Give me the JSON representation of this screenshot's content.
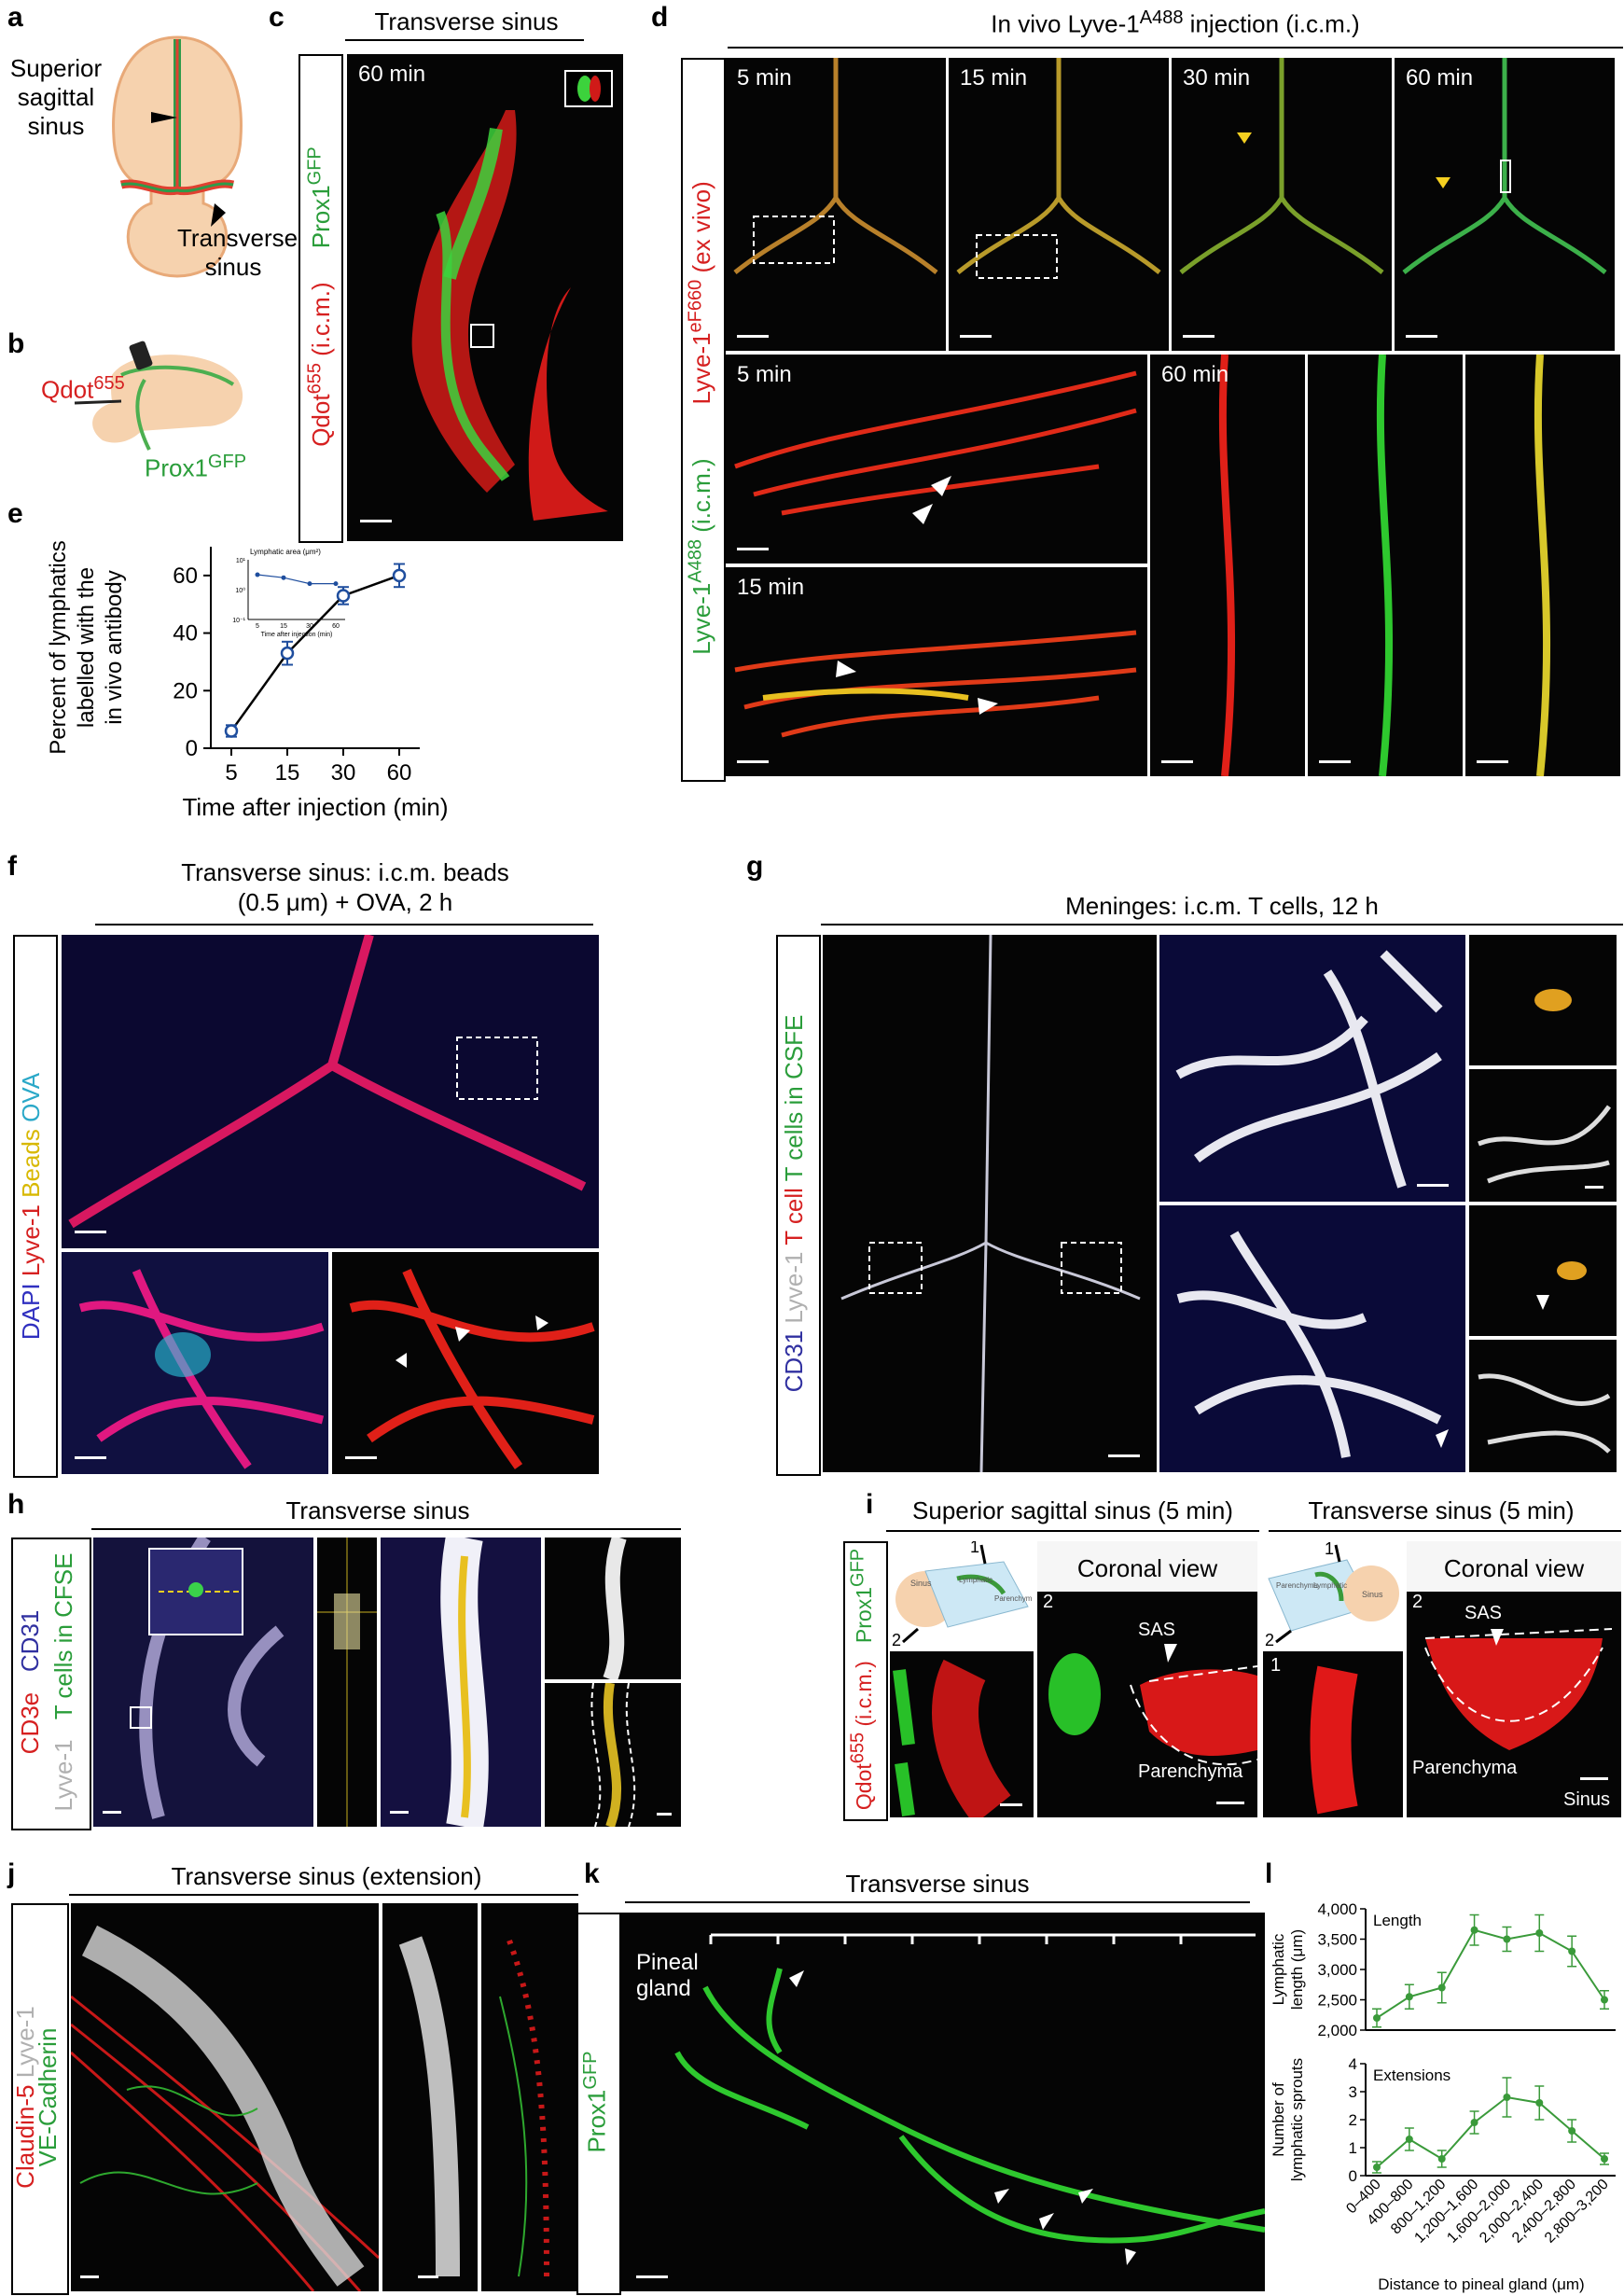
{
  "panels": {
    "a": {
      "letter": "a",
      "sss": [
        "Superior",
        "sagittal",
        "sinus"
      ],
      "ts": [
        "Transverse",
        "sinus"
      ]
    },
    "b": {
      "letter": "b",
      "qdot_main": "Qdot",
      "qdot_sup": "655",
      "prox_main": "Prox1",
      "prox_sup": "GFP"
    },
    "c": {
      "letter": "c",
      "title": "Transverse sinus",
      "time": "60 min",
      "side_prox": "Prox1",
      "side_prox_sup": "GFP",
      "side_qdot": "Qdot",
      "side_qdot_sup": "655",
      "side_qdot_tail": " (i.c.m.)"
    },
    "d": {
      "letter": "d",
      "title_pre": "In vivo Lyve-1",
      "title_sup": "A488",
      "title_post": " injection (i.c.m.)",
      "times": [
        "5 min",
        "15 min",
        "30 min",
        "60 min"
      ],
      "z5": "5 min",
      "z15": "15 min",
      "z60": "60 min",
      "side_red": "Lyve-1",
      "side_red_sup": "eF660",
      "side_red_tail": " (ex vivo)",
      "side_green": "Lyve-1",
      "side_green_sup": "A488",
      "side_green_tail": " (i.c.m.)"
    },
    "e": {
      "letter": "e",
      "ylabel": [
        "Percent of lymphatics",
        "labelled with the",
        "in vivo antibody"
      ],
      "xlabel": "Time after injection (min)",
      "inset_title": "Lymphatic area (μm²)",
      "inset_xlabel": "Time after injection (min)"
    },
    "f": {
      "letter": "f",
      "title1": "Transverse sinus: i.c.m. beads",
      "title2": "(0.5 μm) + OVA, 2 h",
      "side": [
        "DAPI",
        "Lyve-1",
        "Beads",
        "OVA"
      ]
    },
    "g": {
      "letter": "g",
      "title": "Meninges: i.c.m. T cells, 12 h",
      "side": [
        "CD31",
        "Lyve-1",
        "T cell",
        "T cells in CSFE"
      ]
    },
    "h": {
      "letter": "h",
      "title": "Transverse sinus",
      "side": [
        "CD3e",
        "CD31",
        "Lyve-1",
        "T cells in CFSE"
      ]
    },
    "i": {
      "letter": "i",
      "title_left": "Superior sagittal sinus (5 min)",
      "title_right": "Transverse sinus (5 min)",
      "coronal": "Coronal view",
      "sas": "SAS",
      "parenchyma": "Parenchyma",
      "sinus": "Sinus",
      "n1": "1",
      "n2": "2",
      "schem_left": [
        "Sinus",
        "Lymphatic",
        "Parenchyma"
      ],
      "schem_right": [
        "Parenchyma",
        "Lymphatic",
        "Sinus"
      ],
      "side_prox": "Prox1",
      "side_prox_sup": "GFP",
      "side_qdot": "Qdot",
      "side_qdot_sup": "655",
      "side_qdot_tail": " (i.c.m.)"
    },
    "j": {
      "letter": "j",
      "title": "Transverse sinus (extension)",
      "side_red": "Claudin-5",
      "side_white": "Lyve-1",
      "side_green": "VE-Cadherin"
    },
    "k": {
      "letter": "k",
      "title": "Transverse sinus",
      "pineal": [
        "Pineal",
        "gland"
      ],
      "side": "Prox1",
      "side_sup": "GFP"
    },
    "l": {
      "letter": "l",
      "top_label": "Length",
      "bottom_label": "Extensions",
      "ylabel_top": [
        "Lymphatic",
        "length (μm)"
      ],
      "ylabel_bottom": [
        "Number of",
        "lymphatic sprouts"
      ],
      "xlabel": "Distance to pineal gland (μm)"
    }
  },
  "chart_data": [
    {
      "type": "line",
      "panel": "e",
      "x": [
        5,
        15,
        30,
        60
      ],
      "x_tick_labels": [
        "5",
        "15",
        "30",
        "60"
      ],
      "y": [
        6,
        33,
        53,
        60
      ],
      "y_err": [
        2,
        4,
        3,
        4
      ],
      "y_ticks": [
        0,
        20,
        40,
        60
      ],
      "ylim": [
        0,
        70
      ],
      "color": "#1f4e9e"
    },
    {
      "type": "line",
      "panel": "e-inset",
      "x": [
        5,
        15,
        30,
        60
      ],
      "y": [
        0.75,
        0.7,
        0.6,
        0.6
      ],
      "y_ticks_labels": [
        "10⁻¹",
        "10⁰",
        "10¹"
      ],
      "x_tick_labels": [
        "5",
        "15",
        "30",
        "60"
      ]
    },
    {
      "type": "line",
      "panel": "l-length",
      "categories": [
        "0–400",
        "400–800",
        "800–1,200",
        "1,200–1,600",
        "1,600–2,000",
        "2,000–2,400",
        "2,400–2,800",
        "2,800–3,200"
      ],
      "values": [
        2200,
        2550,
        2700,
        3650,
        3500,
        3600,
        3300,
        2500
      ],
      "errors": [
        150,
        200,
        250,
        250,
        200,
        300,
        250,
        150
      ],
      "y_ticks": [
        "2,000",
        "2,500",
        "3,000",
        "3,500",
        "4,000"
      ],
      "ylim": [
        2000,
        4000
      ],
      "color": "#3a9a3a"
    },
    {
      "type": "line",
      "panel": "l-extensions",
      "categories": [
        "0–400",
        "400–800",
        "800–1,200",
        "1,200–1,600",
        "1,600–2,000",
        "2,000–2,400",
        "2,400–2,800",
        "2,800–3,200"
      ],
      "values": [
        0.3,
        1.3,
        0.6,
        1.9,
        2.8,
        2.6,
        1.6,
        0.6
      ],
      "errors": [
        0.2,
        0.4,
        0.3,
        0.4,
        0.7,
        0.6,
        0.4,
        0.2
      ],
      "y_ticks": [
        "0",
        "1",
        "2",
        "3",
        "4"
      ],
      "ylim": [
        0,
        4
      ],
      "color": "#3a9a3a"
    }
  ]
}
